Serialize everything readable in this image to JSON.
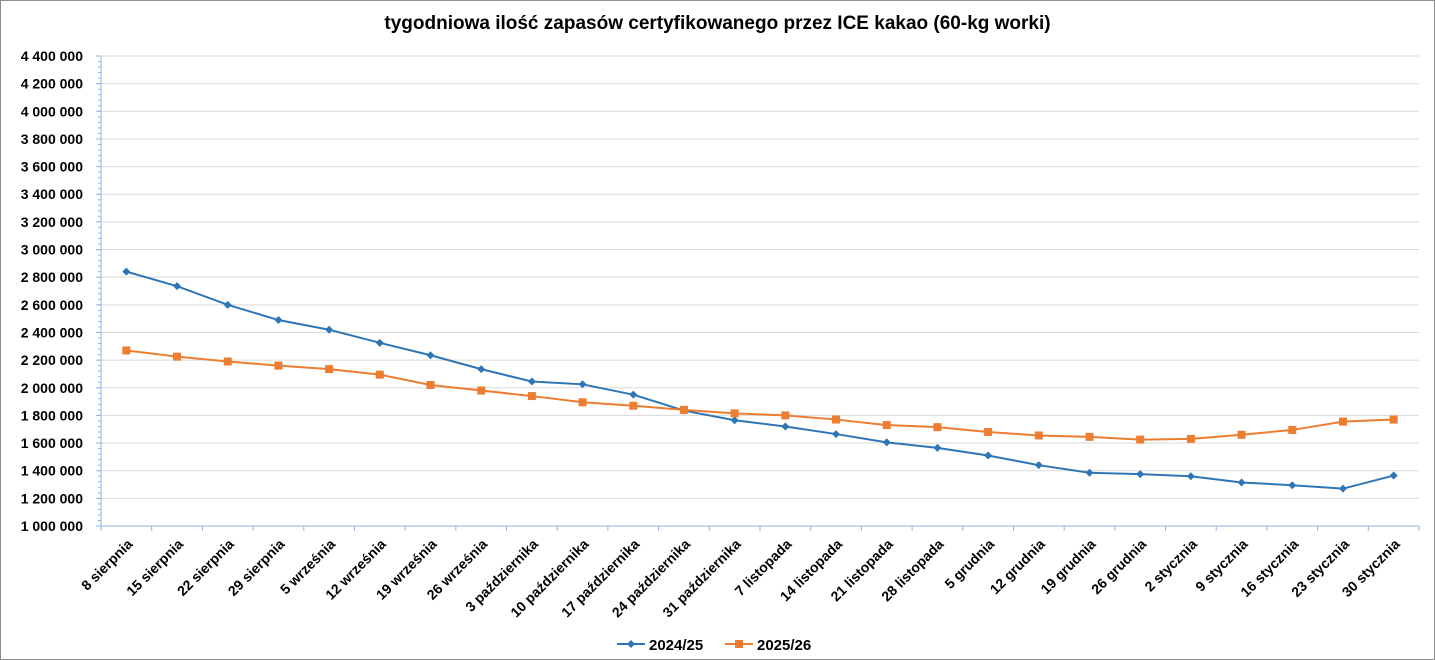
{
  "chart_data": {
    "type": "line",
    "title": "tygodniowa ilość zapasów certyfikowanego przez ICE kakao (60-kg worki)",
    "xlabel": "",
    "ylabel": "",
    "ylim": [
      1000000,
      4400000
    ],
    "ystep": 200000,
    "grid": true,
    "legend_position": "bottom",
    "categories": [
      "8 sierpnia",
      "15 sierpnia",
      "22 sierpnia",
      "29 sierpnia",
      "5 września",
      "12 września",
      "19 września",
      "26 września",
      "3 października",
      "10 października",
      "17 października",
      "24 października",
      "31 października",
      "7 listopada",
      "14 listopada",
      "21 listopada",
      "28 listopada",
      "5 grudnia",
      "12 grudnia",
      "19 grudnia",
      "26 grudnia",
      "2 stycznia",
      "9 stycznia",
      "16 stycznia",
      "23 stycznia",
      "30 stycznia"
    ],
    "ytick_labels": [
      "1 000 000",
      "1 200 000",
      "1 400 000",
      "1 600 000",
      "1 800 000",
      "2 000 000",
      "2 200 000",
      "2 400 000",
      "2 600 000",
      "2 800 000",
      "3 000 000",
      "3 200 000",
      "3 400 000",
      "3 600 000",
      "3 800 000",
      "4 000 000",
      "4 200 000",
      "4 400 000"
    ],
    "series": [
      {
        "name": "2024/25",
        "color": "#2e75b6",
        "marker": "diamond",
        "values": [
          2840000,
          2735000,
          2600000,
          2490000,
          2420000,
          2325000,
          2235000,
          2135000,
          2045000,
          2025000,
          1950000,
          1835000,
          1765000,
          1720000,
          1665000,
          1605000,
          1565000,
          1510000,
          1440000,
          1385000,
          1375000,
          1360000,
          1315000,
          1295000,
          1270000,
          1365000
        ]
      },
      {
        "name": "2025/26",
        "color": "#ed7d31",
        "marker": "square",
        "values": [
          2270000,
          2225000,
          2190000,
          2160000,
          2135000,
          2095000,
          2020000,
          1980000,
          1940000,
          1895000,
          1870000,
          1840000,
          1815000,
          1800000,
          1770000,
          1730000,
          1715000,
          1680000,
          1655000,
          1645000,
          1625000,
          1630000,
          1660000,
          1695000,
          1755000,
          1770000
        ]
      }
    ]
  }
}
